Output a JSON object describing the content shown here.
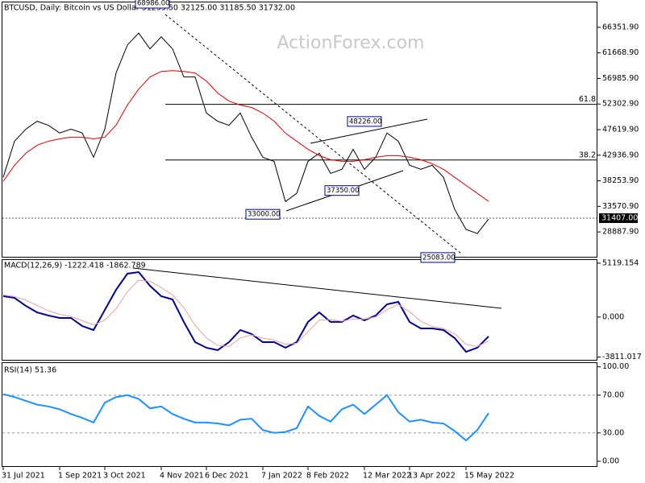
{
  "chart_data": [
    {
      "type": "line",
      "title": "BTCUSD, Daily:  Bitcoin vs US Dollar  31235.50 32125.00 31185.50 31732.00",
      "watermark": "ActionForex.com",
      "ylim": [
        24187,
        70906
      ],
      "yticks": [
        {
          "value": 66351.9,
          "label": "66351.90"
        },
        {
          "value": 61668.9,
          "label": "61668.90"
        },
        {
          "value": 56985.9,
          "label": "56985.90"
        },
        {
          "value": 52302.9,
          "label": "52302.90"
        },
        {
          "value": 47619.9,
          "label": "47619.90"
        },
        {
          "value": 42936.9,
          "label": "42936.90"
        },
        {
          "value": 38253.9,
          "label": "38253.90"
        },
        {
          "value": 33570.9,
          "label": "33570.90"
        },
        {
          "value": 28887.9,
          "label": "28887.90"
        }
      ],
      "series": [
        {
          "color": "#000000",
          "values": [
            38900,
            45500,
            47700,
            49150,
            48400,
            47000,
            47700,
            47000,
            42550,
            47700,
            58000,
            63100,
            65300,
            62400,
            64600,
            62400,
            57250,
            57250,
            50650,
            49150,
            48400,
            50650,
            46250,
            42550,
            41800,
            34450,
            35950,
            41800,
            43300,
            39600,
            40350,
            44000,
            40350,
            42550,
            47000,
            45500,
            41100,
            40350,
            41100,
            38900,
            33000,
            29350,
            28600,
            31250
          ]
        },
        {
          "color": "#e00000",
          "values": [
            38150,
            41090,
            43290,
            44760,
            45490,
            45930,
            46230,
            46230,
            45930,
            46230,
            48430,
            52110,
            55040,
            57250,
            58270,
            58420,
            58270,
            57980,
            56510,
            54310,
            52840,
            52110,
            51670,
            50640,
            49170,
            46970,
            45490,
            44020,
            42850,
            42110,
            41820,
            41820,
            42110,
            42550,
            42850,
            42850,
            42550,
            42110,
            41380,
            40350,
            38880,
            37410,
            35950,
            34480
          ]
        }
      ],
      "levels": [
        {
          "label": "61.8",
          "value": 52250
        },
        {
          "label": "38.2",
          "value": 42050
        }
      ],
      "annotations": [
        {
          "value": 68986,
          "label": "68986.00"
        },
        {
          "value": 48226,
          "label": "48226.00"
        },
        {
          "value": 33000,
          "label": "33000.00"
        },
        {
          "value": 37350,
          "label": "37350.00"
        },
        {
          "value": 25083,
          "label": "25083.00"
        }
      ],
      "current": {
        "value": 31407,
        "label": "31407.00"
      }
    },
    {
      "type": "line",
      "title": "MACD(12,26,9) -1222.418 -1862.789",
      "ylim": [
        -4150,
        5420
      ],
      "yticks": [
        5119.154,
        {
          "value": 0,
          "label": "0.000"
        },
        -3811.017
      ],
      "series": [
        {
          "color": "#00008b",
          "values": [
            1980,
            1820,
            1060,
            440,
            140,
            -90,
            -90,
            -860,
            -1240,
            670,
            2590,
            4120,
            4270,
            2970,
            1980,
            1670,
            -470,
            -2390,
            -2920,
            -3150,
            -2390,
            -1240,
            -1620,
            -2390,
            -2390,
            -2920,
            -2390,
            -470,
            440,
            -470,
            -470,
            140,
            -320,
            140,
            1210,
            1440,
            -470,
            -1090,
            -1090,
            -1240,
            -2010,
            -3310,
            -2920,
            -1850
          ]
        },
        {
          "color": "#e8a0a0",
          "values": [
            2100,
            1950,
            1600,
            1100,
            600,
            250,
            50,
            -350,
            -750,
            -300,
            800,
            2400,
            3500,
            3400,
            2800,
            2100,
            900,
            -800,
            -2000,
            -2700,
            -2800,
            -2000,
            -1700,
            -2000,
            -2200,
            -2600,
            -2500,
            -1400,
            -300,
            -250,
            -400,
            -200,
            -200,
            0,
            700,
            1200,
            500,
            -400,
            -900,
            -1100,
            -1600,
            -2600,
            -2800,
            -2300
          ]
        }
      ]
    },
    {
      "type": "line",
      "title": "RSI(14) 51.36",
      "ylim": [
        -6,
        104
      ],
      "yticks": [
        {
          "value": 100,
          "label": "100.00"
        },
        {
          "value": 70,
          "label": "70.00"
        },
        {
          "value": 30,
          "label": "30.00"
        },
        {
          "value": 0,
          "label": "0.00"
        }
      ],
      "levels": [
        70,
        30
      ],
      "series": [
        {
          "color": "#1e90ff",
          "values": [
            71,
            68,
            64,
            60,
            58,
            55,
            50,
            46,
            41,
            62,
            68,
            70,
            66,
            56,
            58,
            50,
            45,
            41,
            41,
            40,
            38,
            44,
            45,
            33,
            30,
            31,
            35,
            58,
            48,
            42,
            55,
            60,
            50,
            60,
            70,
            52,
            42,
            44,
            41,
            40,
            32,
            22,
            33,
            51
          ]
        }
      ],
      "categories": [
        "31 Jul 2021",
        null,
        null,
        null,
        null,
        "1 Sep 2021",
        null,
        null,
        null,
        "3 Oct 2021",
        null,
        null,
        null,
        null,
        "4 Nov 2021",
        null,
        null,
        null,
        "6 Dec 2021",
        null,
        null,
        null,
        null,
        "7 Jan 2022",
        null,
        null,
        null,
        "8 Feb 2022",
        null,
        null,
        null,
        null,
        "12 Mar 2022",
        null,
        null,
        null,
        "13 Apr 2022",
        null,
        null,
        null,
        null,
        "15 May 2022",
        null,
        null
      ]
    }
  ]
}
